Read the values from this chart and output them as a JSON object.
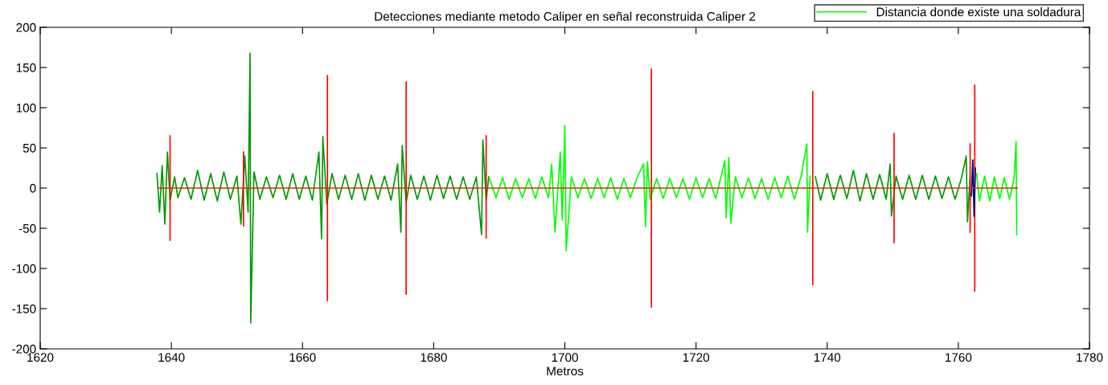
{
  "chart_data": {
    "type": "line",
    "title": "Detecciones mediante metodo Caliper en señal reconstruida Caliper 2",
    "xlabel": "Metros",
    "xlim": [
      1620,
      1780
    ],
    "xticks": [
      1620,
      1640,
      1660,
      1680,
      1700,
      1720,
      1740,
      1760,
      1780
    ],
    "ylim": [
      -200,
      200
    ],
    "yticks": [
      -200,
      -150,
      -100,
      -50,
      0,
      50,
      100,
      150,
      200
    ],
    "grid": false,
    "legend": "top right",
    "marker": "none",
    "line_style": "solid",
    "series": [
      {
        "color": "#009900",
        "x": [
          1637.8,
          1638.2,
          1638.6,
          1639.0,
          1639.4,
          1639.8,
          1640.5,
          1641,
          1642,
          1643,
          1644,
          1645,
          1646,
          1647,
          1648,
          1649,
          1650,
          1650.6,
          1651.2,
          1651.7,
          1652.0,
          1652.1,
          1652.6,
          1653.5,
          1654.5,
          1655.5,
          1656.5,
          1657.5,
          1658.5,
          1659.5,
          1660.5,
          1661.5,
          1662.5,
          1662.9,
          1663.1,
          1663.7,
          1664.5,
          1665.5,
          1666.5,
          1667.5,
          1668.5,
          1669.5,
          1670.5,
          1671.5,
          1672.5,
          1673.5,
          1674.5,
          1675.0,
          1675.2,
          1675.8,
          1676.5,
          1677.5,
          1678.5,
          1679.5,
          1680.5,
          1681.5,
          1682.5,
          1683.5,
          1684.5,
          1685.5,
          1686.5,
          1687.3,
          1687.5,
          1688.0,
          1688.4
        ],
        "values": [
          18,
          -30,
          28,
          -45,
          45,
          -15,
          14,
          -12,
          13,
          -14,
          22,
          -15,
          18,
          -16,
          20,
          -14,
          15,
          -45,
          40,
          -30,
          168,
          -168,
          20,
          -14,
          14,
          -12,
          16,
          -14,
          18,
          -14,
          15,
          -15,
          45,
          -63,
          64,
          -20,
          18,
          -14,
          16,
          -14,
          18,
          -15,
          16,
          -14,
          15,
          -15,
          30,
          -55,
          53,
          -18,
          16,
          -14,
          15,
          -15,
          16,
          -13,
          15,
          -14,
          14,
          -14,
          14,
          -58,
          60,
          -15,
          14
        ]
      },
      {
        "color": "#009900",
        "x": [
          1738.2,
          1739,
          1740,
          1741,
          1742,
          1743,
          1744,
          1745,
          1746,
          1747,
          1748,
          1749,
          1749.6,
          1749.8,
          1750.5,
          1751.5,
          1752.5,
          1753.5,
          1754.5,
          1755.5,
          1756.5,
          1757.5,
          1758.5,
          1759.5,
          1760.5,
          1761.2,
          1761.4,
          1761.8
        ],
        "values": [
          14,
          -15,
          18,
          -14,
          16,
          -13,
          22,
          -16,
          18,
          -14,
          17,
          -14,
          30,
          -35,
          15,
          -14,
          16,
          -14,
          16,
          -14,
          15,
          -13,
          14,
          -14,
          13,
          40,
          -42,
          15
        ]
      },
      {
        "name": "Distancia donde existe una soldadura",
        "color": "#00ff00",
        "x": [
          1688.5,
          1689.5,
          1690.5,
          1691.5,
          1692.5,
          1693.5,
          1694.5,
          1695.5,
          1696.5,
          1697.5,
          1698.0,
          1698.5,
          1699.3,
          1699.6,
          1700.0,
          1700.2,
          1701,
          1702,
          1703,
          1704,
          1705,
          1706,
          1707,
          1708,
          1709,
          1710,
          1711,
          1712.0,
          1712.3,
          1712.6,
          1713,
          1714,
          1715,
          1716,
          1717,
          1718,
          1719,
          1720,
          1721,
          1722,
          1723,
          1724.4,
          1724.6,
          1725.0,
          1725.3,
          1726,
          1727,
          1728,
          1729,
          1730,
          1731,
          1732,
          1733,
          1734,
          1735,
          1736,
          1736.9,
          1737.0,
          1737.4
        ],
        "values": [
          12,
          -12,
          13,
          -14,
          12,
          -12,
          12,
          -13,
          14,
          -12,
          30,
          -55,
          45,
          -40,
          78,
          -78,
          14,
          -12,
          12,
          -13,
          12,
          -12,
          13,
          -14,
          12,
          -12,
          13,
          30,
          -48,
          33,
          -14,
          12,
          -13,
          12,
          -12,
          12,
          -14,
          13,
          -12,
          12,
          -13,
          34,
          -37,
          38,
          -44,
          14,
          -12,
          13,
          -13,
          12,
          -14,
          13,
          -12,
          15,
          -14,
          14,
          55,
          -55,
          15
        ]
      },
      {
        "color": "#00ff00",
        "x": [
          1762.8,
          1763.2,
          1764,
          1764.8,
          1765.5,
          1766.3,
          1767,
          1767.8,
          1768.5,
          1768.8,
          1768.9
        ],
        "values": [
          18,
          -16,
          15,
          -16,
          14,
          -13,
          13,
          -14,
          12,
          58,
          -58
        ]
      },
      {
        "color": "#ff0000",
        "x": [
          1639.8,
          1639.8
        ],
        "values": [
          65,
          -65
        ]
      },
      {
        "color": "#ff0000",
        "x": [
          1651,
          1651
        ],
        "values": [
          45,
          -47
        ]
      },
      {
        "color": "#ff0000",
        "x": [
          1663.8,
          1663.8
        ],
        "values": [
          140,
          -140
        ]
      },
      {
        "color": "#ff0000",
        "x": [
          1675.8,
          1675.8
        ],
        "values": [
          132,
          -132
        ]
      },
      {
        "color": "#ff0000",
        "x": [
          1688,
          1688
        ],
        "values": [
          65,
          -62
        ]
      },
      {
        "color": "#ff0000",
        "x": [
          1713.2,
          1713.2
        ],
        "values": [
          148,
          -148
        ]
      },
      {
        "color": "#ff0000",
        "x": [
          1737.8,
          1737.8
        ],
        "values": [
          120,
          -120
        ]
      },
      {
        "color": "#ff0000",
        "x": [
          1750.2,
          1750.2
        ],
        "values": [
          68,
          -68
        ]
      },
      {
        "color": "#ff0000",
        "x": [
          1761.8,
          1761.8
        ],
        "values": [
          55,
          -55
        ]
      },
      {
        "color": "#ff0000",
        "x": [
          1762.5,
          1762.5
        ],
        "values": [
          128,
          -128
        ]
      },
      {
        "color": "#000080",
        "x": [
          1762.0,
          1762.2,
          1762.4,
          1762.6
        ],
        "values": [
          -10,
          35,
          -35,
          25
        ]
      },
      {
        "color": "#cc3300",
        "x": [
          1638,
          1769
        ],
        "values": [
          0,
          0
        ]
      }
    ]
  }
}
